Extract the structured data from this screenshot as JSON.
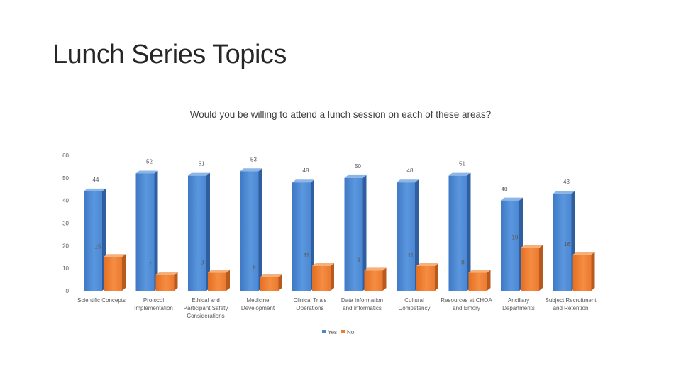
{
  "slide": {
    "title": "Lunch Series Topics"
  },
  "chart_data": {
    "type": "bar",
    "title": "Would you be willing to attend a lunch session on each of these areas?",
    "xlabel": "",
    "ylabel": "",
    "ylim": [
      0,
      60
    ],
    "yticks": [
      0,
      10,
      20,
      30,
      40,
      50,
      60
    ],
    "style": "3d-clustered-column",
    "legend_position": "bottom",
    "categories": [
      [
        "Scientific Concepts"
      ],
      [
        "Protocol",
        "Implementation"
      ],
      [
        "Ethical and",
        "Participant Safety",
        "Considerations"
      ],
      [
        "Medicine",
        "Development"
      ],
      [
        "Clinical Trials",
        "Operations"
      ],
      [
        "Data Information",
        "and Informatics"
      ],
      [
        "Cultural",
        "Competency"
      ],
      [
        "Resources at CHOA",
        "and Emory"
      ],
      [
        "Ancillary",
        "Departments"
      ],
      [
        "Subject Recruitment",
        "and Retention"
      ]
    ],
    "series": [
      {
        "name": "Yes",
        "color": "#4a86d0",
        "values": [
          44,
          52,
          51,
          53,
          48,
          50,
          48,
          51,
          40,
          43
        ]
      },
      {
        "name": "No",
        "color": "#ed7d31",
        "values": [
          15,
          7,
          8,
          6,
          11,
          9,
          11,
          8,
          19,
          16
        ]
      }
    ]
  }
}
